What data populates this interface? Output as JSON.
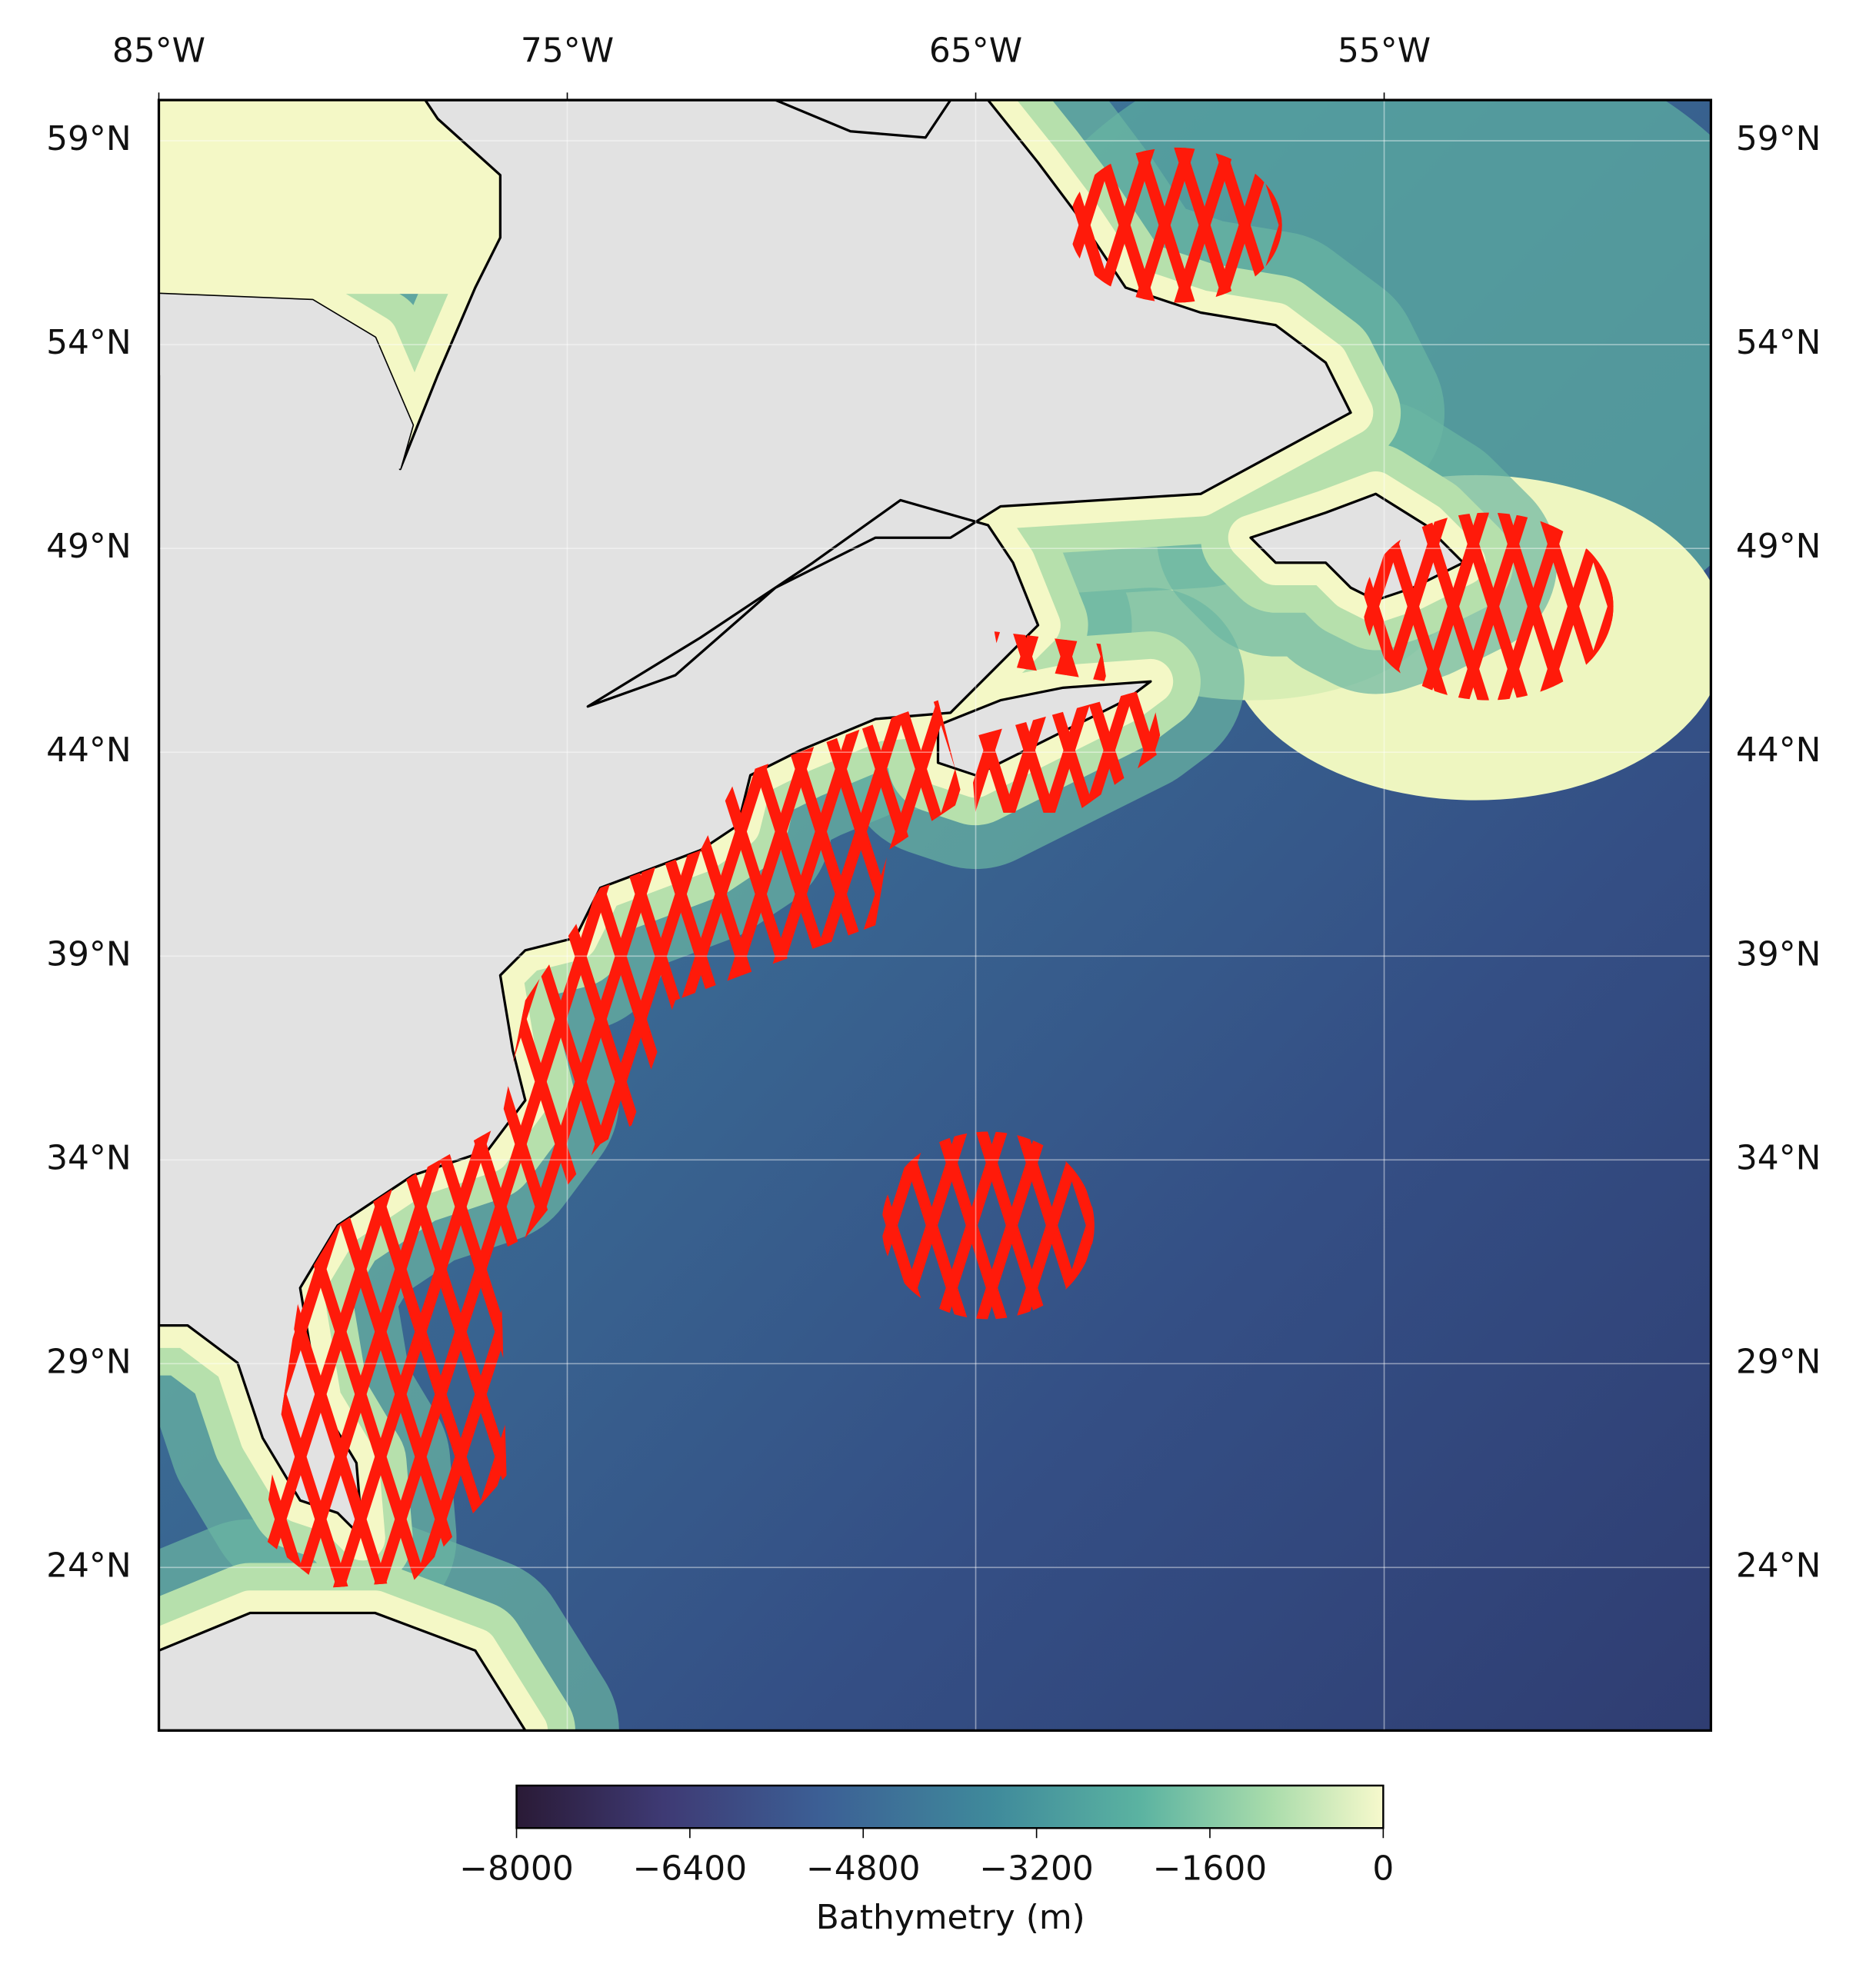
{
  "map": {
    "xlim": [
      -85,
      -47
    ],
    "ylim": [
      20,
      60
    ],
    "xticks": [
      {
        "value": -85,
        "label": "85°W"
      },
      {
        "value": -75,
        "label": "75°W"
      },
      {
        "value": -65,
        "label": "65°W"
      },
      {
        "value": -55,
        "label": "55°W"
      }
    ],
    "yticks": [
      {
        "value": 59,
        "label": "59°N"
      },
      {
        "value": 54,
        "label": "54°N"
      },
      {
        "value": 49,
        "label": "49°N"
      },
      {
        "value": 44,
        "label": "44°N"
      },
      {
        "value": 39,
        "label": "39°N"
      },
      {
        "value": 34,
        "label": "34°N"
      },
      {
        "value": 29,
        "label": "29°N"
      },
      {
        "value": 24,
        "label": "24°N"
      }
    ],
    "grid": true,
    "track_color": "#ff1a0a",
    "colorbar": {
      "label": "Bathymetry (m)",
      "lim": [
        -8000,
        0
      ],
      "ticks": [
        {
          "value": -8000,
          "label": "−8000"
        },
        {
          "value": -6400,
          "label": "−6400"
        },
        {
          "value": -4800,
          "label": "−4800"
        },
        {
          "value": -3200,
          "label": "−3200"
        },
        {
          "value": -1600,
          "label": "−1600"
        },
        0
      ]
    }
  }
}
